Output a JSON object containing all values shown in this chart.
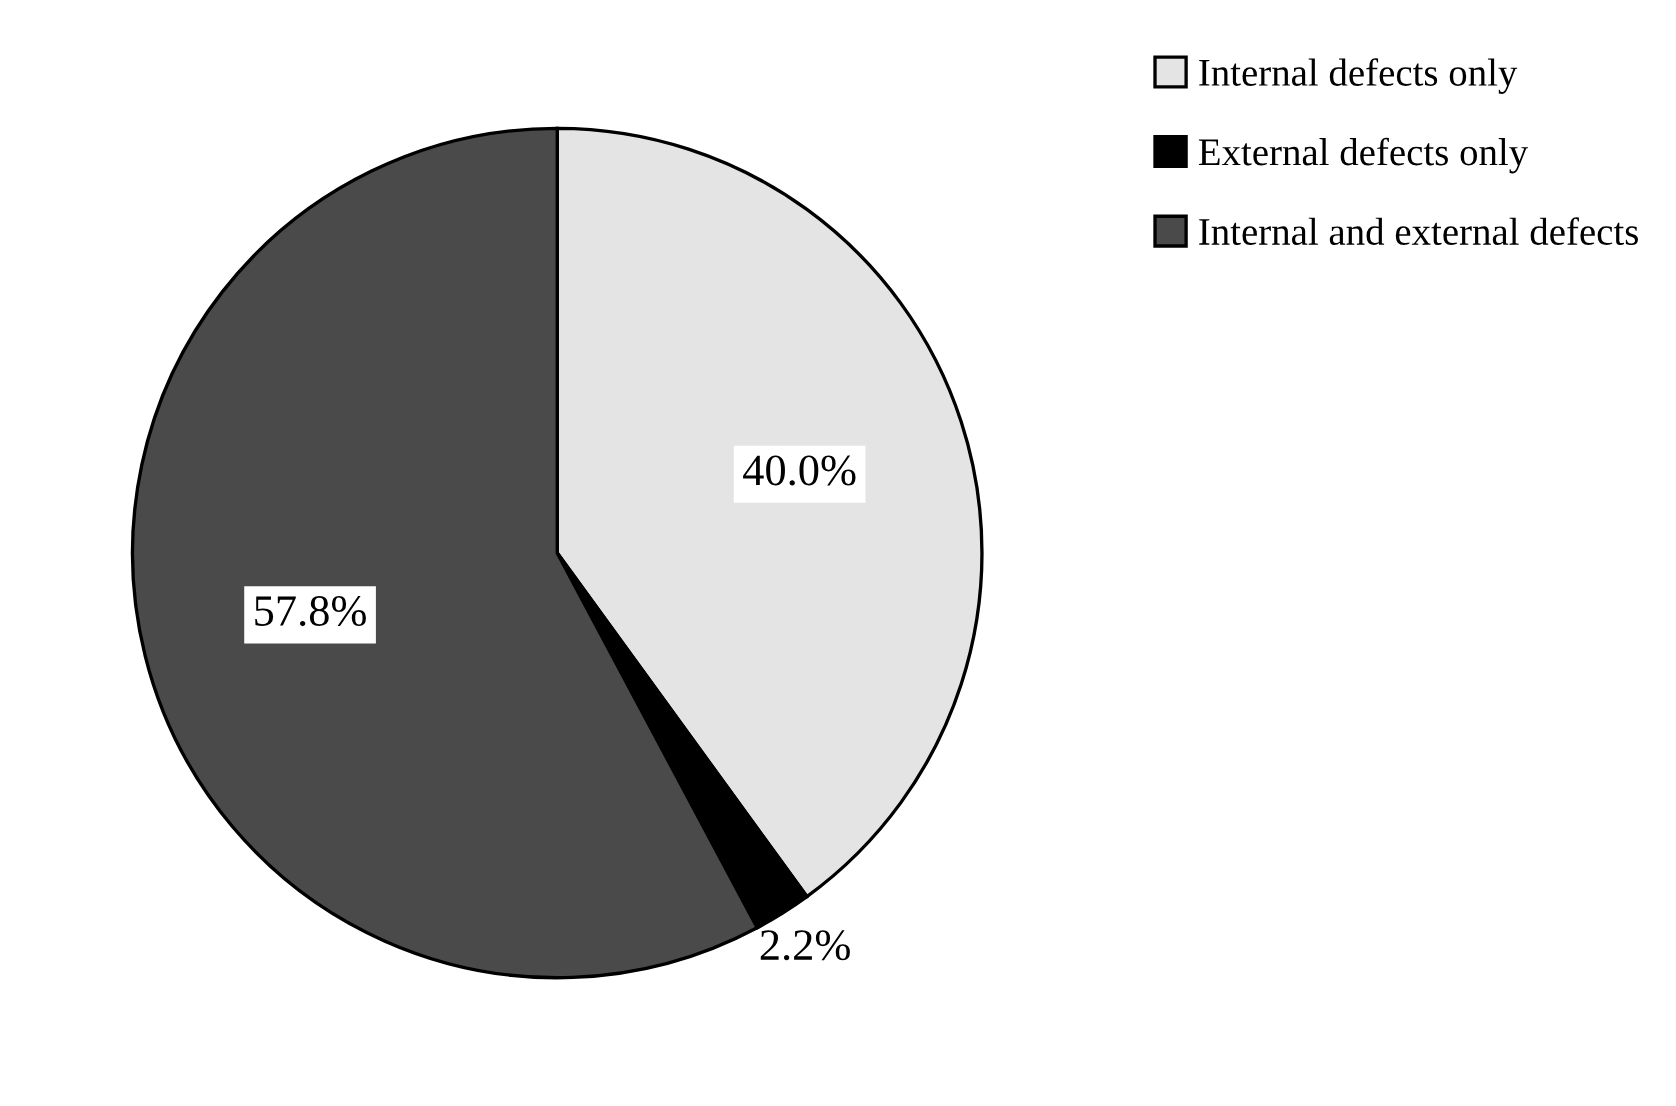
{
  "chart_data": {
    "type": "pie",
    "categories": [
      "Internal defects only",
      "External defects only",
      "Internal and external defects"
    ],
    "values": [
      40.0,
      2.2,
      57.8
    ],
    "value_labels": [
      "40.0%",
      "2.2%",
      "57.8%"
    ],
    "colors": [
      "#e4e4e4",
      "#000000",
      "#4a4a4a"
    ],
    "legend": "top right"
  }
}
